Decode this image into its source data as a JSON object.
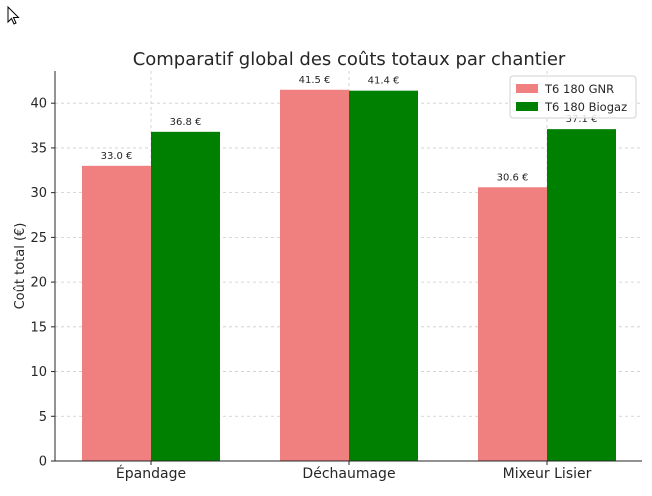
{
  "chart_data": {
    "type": "bar",
    "title": "Comparatif global des coûts totaux par chantier",
    "xlabel": "",
    "ylabel": "Coût total (€)",
    "categories": [
      "Épandage",
      "Déchaumage",
      "Mixeur Lisier"
    ],
    "series": [
      {
        "name": "T6 180 GNR",
        "color": "#f08080",
        "values": [
          33.0,
          41.5,
          30.6
        ],
        "labels": [
          "33.0 €",
          "41.5 €",
          "30.6 €"
        ]
      },
      {
        "name": "T6 180 Biogaz",
        "color": "#008000",
        "values": [
          36.8,
          41.4,
          37.1
        ],
        "labels": [
          "36.8 €",
          "41.4 €",
          "37.1 €"
        ]
      }
    ],
    "ylim": [
      0,
      43.6
    ],
    "yticks": [
      0,
      5,
      10,
      15,
      20,
      25,
      30,
      35,
      40
    ],
    "grid": true,
    "legend_position": "top-right"
  },
  "ui": {
    "cursor_icon": "mouse-pointer-icon"
  }
}
